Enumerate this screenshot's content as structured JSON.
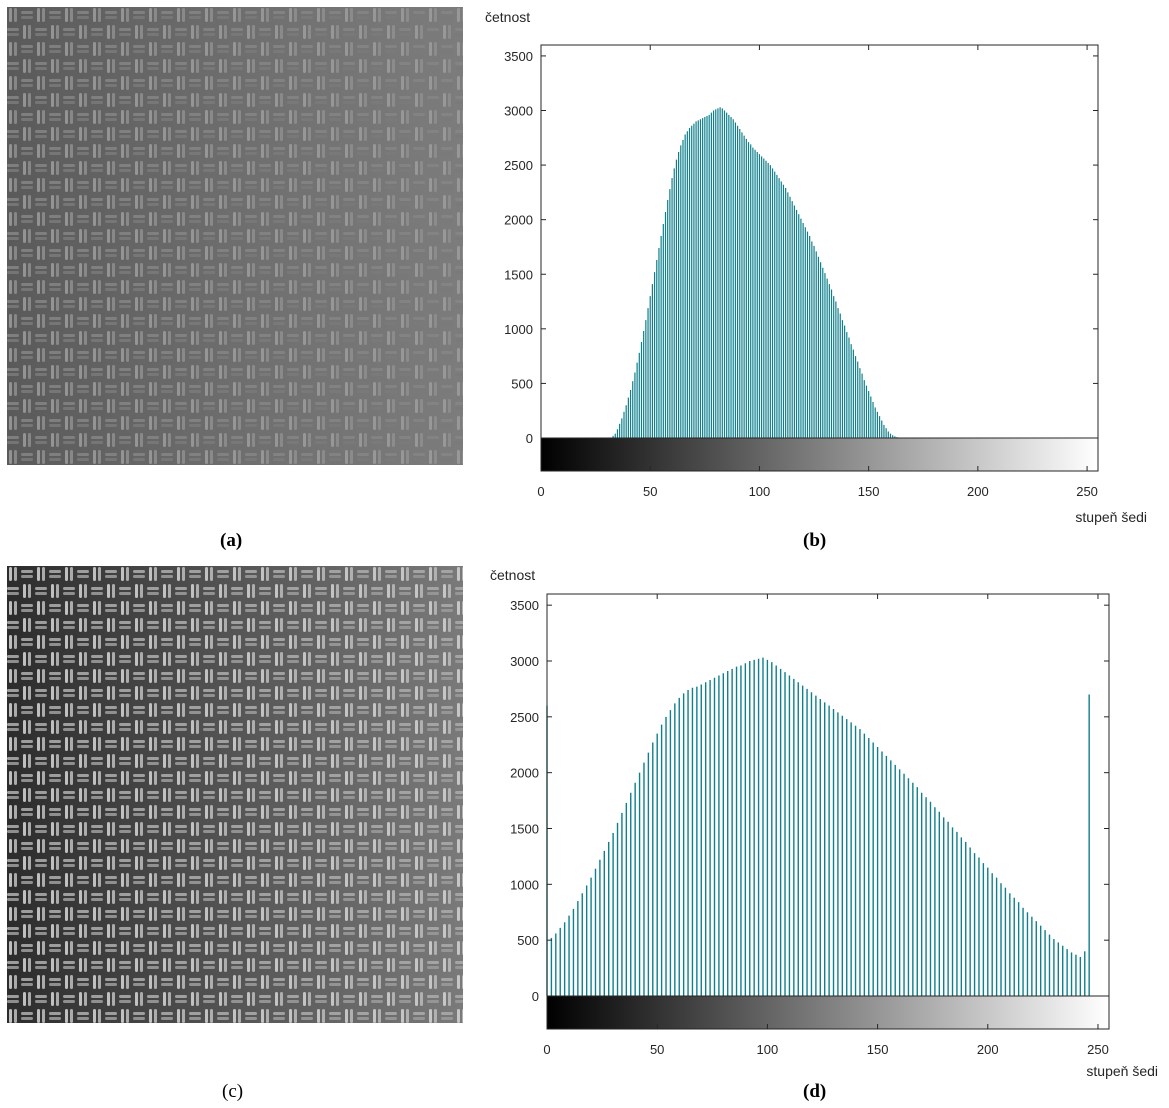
{
  "panel_labels": [
    "(a)",
    "(b)",
    "(c)",
    "(d)"
  ],
  "colors": {
    "bar": "#0e7f8c",
    "axis": "#262626",
    "texture_dark": "#3c3c3c",
    "texture_light": "#c8c8c8"
  },
  "chart_data": [
    {
      "type": "bar",
      "panel": "(b)",
      "title": "",
      "xlabel": "stupeň šedi",
      "ylabel": "četnost",
      "xlim": [
        0,
        255
      ],
      "ylim": [
        -300,
        3600
      ],
      "xticks": [
        0,
        50,
        100,
        150,
        200,
        250
      ],
      "yticks": [
        0,
        500,
        1000,
        1500,
        2000,
        2500,
        3000,
        3500
      ],
      "colorbar": "grayscale 0-255 below axis",
      "grid": false,
      "x_start": 33,
      "values": [
        20,
        40,
        80,
        130,
        180,
        240,
        300,
        370,
        440,
        520,
        600,
        690,
        780,
        880,
        980,
        1080,
        1190,
        1300,
        1410,
        1520,
        1630,
        1740,
        1850,
        1960,
        2070,
        2180,
        2280,
        2380,
        2470,
        2550,
        2620,
        2680,
        2730,
        2780,
        2810,
        2840,
        2860,
        2880,
        2900,
        2910,
        2920,
        2930,
        2940,
        2950,
        2960,
        2980,
        3000,
        3010,
        3020,
        3030,
        3020,
        3000,
        2980,
        2960,
        2940,
        2920,
        2890,
        2860,
        2830,
        2800,
        2770,
        2740,
        2710,
        2690,
        2660,
        2640,
        2620,
        2600,
        2580,
        2560,
        2540,
        2520,
        2500,
        2470,
        2440,
        2410,
        2380,
        2350,
        2320,
        2290,
        2250,
        2210,
        2170,
        2130,
        2090,
        2050,
        2010,
        1970,
        1930,
        1890,
        1850,
        1800,
        1760,
        1710,
        1660,
        1610,
        1560,
        1510,
        1460,
        1410,
        1360,
        1300,
        1250,
        1190,
        1140,
        1080,
        1030,
        970,
        920,
        860,
        810,
        750,
        700,
        640,
        590,
        530,
        480,
        430,
        380,
        330,
        280,
        240,
        200,
        160,
        120,
        90,
        60,
        40,
        25,
        15,
        8,
        4,
        2
      ]
    },
    {
      "type": "bar",
      "panel": "(d)",
      "title": "",
      "xlabel": "stupeň šedi",
      "ylabel": "četnost",
      "xlim": [
        0,
        255
      ],
      "ylim": [
        -300,
        3600
      ],
      "xticks": [
        0,
        50,
        100,
        150,
        200,
        250
      ],
      "yticks": [
        0,
        500,
        1000,
        1500,
        2000,
        2500,
        3000,
        3500
      ],
      "colorbar": "grayscale 0-255 below axis",
      "grid": false,
      "x_start": 0,
      "x_step": 2,
      "values": [
        2600,
        520,
        560,
        610,
        660,
        720,
        780,
        850,
        920,
        990,
        1060,
        1140,
        1220,
        1300,
        1380,
        1460,
        1550,
        1640,
        1730,
        1820,
        1910,
        2000,
        2090,
        2180,
        2270,
        2350,
        2430,
        2500,
        2560,
        2620,
        2670,
        2710,
        2740,
        2760,
        2770,
        2790,
        2810,
        2830,
        2850,
        2870,
        2890,
        2910,
        2930,
        2950,
        2960,
        2980,
        3000,
        3010,
        3020,
        3030,
        3010,
        2990,
        2960,
        2930,
        2900,
        2870,
        2840,
        2810,
        2780,
        2750,
        2720,
        2690,
        2660,
        2630,
        2600,
        2570,
        2540,
        2510,
        2480,
        2450,
        2420,
        2390,
        2350,
        2310,
        2270,
        2230,
        2190,
        2150,
        2110,
        2070,
        2030,
        1990,
        1950,
        1910,
        1870,
        1820,
        1780,
        1740,
        1690,
        1650,
        1600,
        1560,
        1510,
        1470,
        1420,
        1380,
        1330,
        1280,
        1240,
        1190,
        1150,
        1100,
        1060,
        1010,
        970,
        920,
        880,
        840,
        790,
        750,
        710,
        670,
        630,
        590,
        550,
        510,
        480,
        450,
        420,
        390,
        370,
        350,
        400,
        2700
      ]
    }
  ]
}
